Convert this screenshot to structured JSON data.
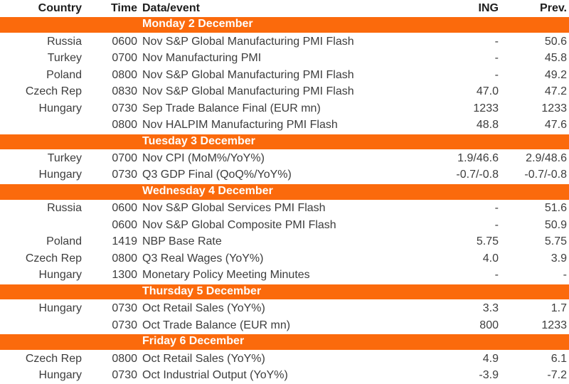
{
  "colors": {
    "accent_orange": "#fb6a0c",
    "band_text": "#ffffff",
    "header_text": "#1e1e1e",
    "body_text": "#3d3d3d"
  },
  "table": {
    "headers": {
      "country": "Country",
      "time": "Time",
      "event": "Data/event",
      "ing": "ING",
      "prev": "Prev."
    },
    "sections": [
      {
        "day": "Monday 2 December",
        "rows": [
          {
            "country": "Russia",
            "time": "0600",
            "event": "Nov S&P Global Manufacturing PMI Flash",
            "ing": "-",
            "prev": "50.6"
          },
          {
            "country": "Turkey",
            "time": "0700",
            "event": "Nov Manufacturing PMI",
            "ing": "-",
            "prev": "45.8"
          },
          {
            "country": "Poland",
            "time": "0800",
            "event": "Nov S&P Global Manufacturing PMI Flash",
            "ing": "-",
            "prev": "49.2"
          },
          {
            "country": "Czech Rep",
            "time": "0830",
            "event": "Nov S&P Global Manufacturing PMI Flash",
            "ing": "47.0",
            "prev": "47.2"
          },
          {
            "country": "Hungary",
            "time": "0730",
            "event": "Sep Trade Balance Final (EUR mn)",
            "ing": "1233",
            "prev": "1233"
          },
          {
            "country": "",
            "time": "0800",
            "event": "Nov HALPIM Manufacturing PMI Flash",
            "ing": "48.8",
            "prev": "47.6"
          }
        ]
      },
      {
        "day": "Tuesday 3 December",
        "rows": [
          {
            "country": "Turkey",
            "time": "0700",
            "event": "Nov CPI (MoM%/YoY%)",
            "ing": "1.9/46.6",
            "prev": "2.9/48.6"
          },
          {
            "country": "Hungary",
            "time": "0730",
            "event": "Q3 GDP Final (QoQ%/YoY%)",
            "ing": "-0.7/-0.8",
            "prev": "-0.7/-0.8"
          }
        ]
      },
      {
        "day": "Wednesday 4 December",
        "rows": [
          {
            "country": "Russia",
            "time": "0600",
            "event": "Nov S&P Global Services PMI Flash",
            "ing": "-",
            "prev": "51.6"
          },
          {
            "country": "",
            "time": "0600",
            "event": "Nov S&P Global Composite PMI Flash",
            "ing": "-",
            "prev": "50.9"
          },
          {
            "country": "Poland",
            "time": "1419",
            "event": "NBP Base Rate",
            "ing": "5.75",
            "prev": "5.75"
          },
          {
            "country": "Czech Rep",
            "time": "0800",
            "event": "Q3 Real Wages (YoY%)",
            "ing": "4.0",
            "prev": "3.9"
          },
          {
            "country": "Hungary",
            "time": "1300",
            "event": "Monetary Policy Meeting Minutes",
            "ing": "-",
            "prev": "-"
          }
        ]
      },
      {
        "day": "Thursday 5 December",
        "rows": [
          {
            "country": "Hungary",
            "time": "0730",
            "event": "Oct Retail Sales (YoY%)",
            "ing": "3.3",
            "prev": "1.7"
          },
          {
            "country": "",
            "time": "0730",
            "event": "Oct Trade Balance (EUR mn)",
            "ing": "800",
            "prev": "1233"
          }
        ]
      },
      {
        "day": "Friday 6 December",
        "rows": [
          {
            "country": "Czech Rep",
            "time": "0800",
            "event": "Oct Retail Sales (YoY%)",
            "ing": "4.9",
            "prev": "6.1"
          },
          {
            "country": "Hungary",
            "time": "0730",
            "event": "Oct Industrial Output (YoY%)",
            "ing": "-3.9",
            "prev": "-7.2"
          }
        ]
      }
    ]
  }
}
